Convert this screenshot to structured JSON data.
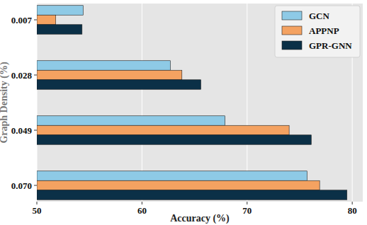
{
  "chart_data": {
    "type": "bar",
    "orientation": "horizontal",
    "x_label": "Accuracy (%)",
    "y_label": "Graph Density (%)",
    "categories": [
      "0.007",
      "0.028",
      "0.049",
      "0.070"
    ],
    "series": [
      {
        "name": "GCN",
        "color": "#8ecae6",
        "values": [
          54.4,
          62.7,
          67.9,
          75.7
        ]
      },
      {
        "name": "APPNP",
        "color": "#f4a261",
        "values": [
          51.8,
          63.8,
          74.0,
          76.9
        ]
      },
      {
        "name": "GPR-GNN",
        "color": "#0b3047",
        "values": [
          54.3,
          65.6,
          76.1,
          79.5
        ]
      }
    ],
    "xlim": [
      50,
      81
    ],
    "xticks": [
      50,
      60,
      70,
      80
    ],
    "grid": true,
    "legend": "upper right"
  }
}
